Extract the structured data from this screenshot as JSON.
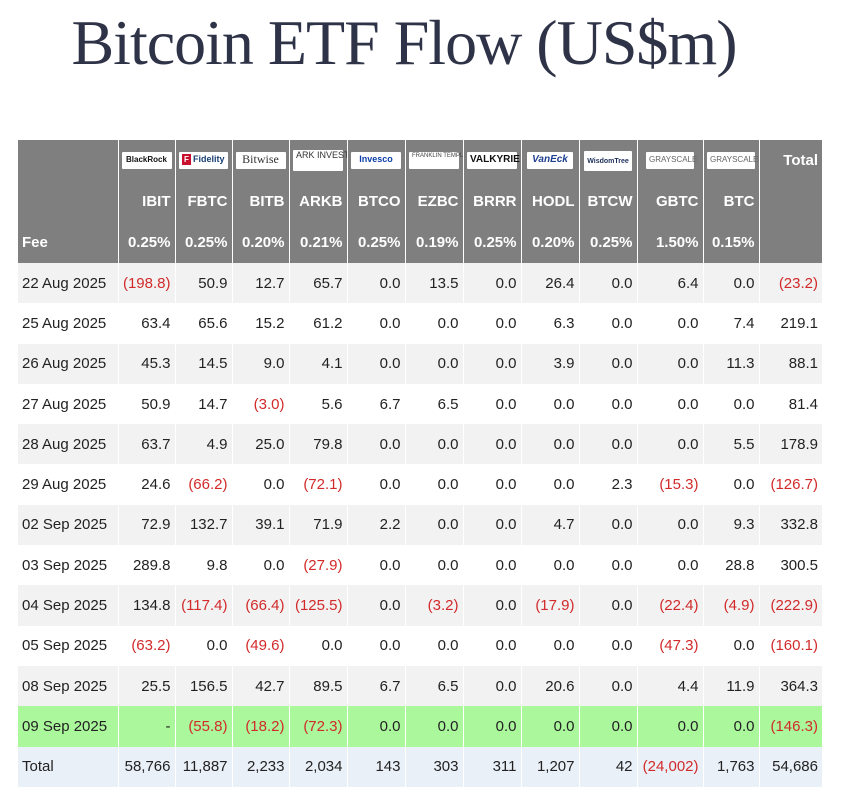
{
  "title": "Bitcoin ETF Flow (US$m)",
  "header": {
    "logos": [
      {
        "name": "blackrock-logo",
        "text": "BlackRock"
      },
      {
        "name": "fidelity-logo",
        "text": "Fidelity"
      },
      {
        "name": "bitwise-logo",
        "text": "Bitwise"
      },
      {
        "name": "ark-logo",
        "text": "ARK INVEST"
      },
      {
        "name": "invesco-logo",
        "text": "Invesco"
      },
      {
        "name": "franklin-logo",
        "text": "FRANKLIN TEMPLETON"
      },
      {
        "name": "valkyrie-logo",
        "text": "VALKYRIE"
      },
      {
        "name": "vaneck-logo",
        "text": "VanEck"
      },
      {
        "name": "wisdomtree-logo",
        "text": "WisdomTree"
      },
      {
        "name": "grayscale-logo",
        "text": "GRAYSCALE"
      },
      {
        "name": "grayscale-mini-logo",
        "text": "GRAYSCALE"
      }
    ],
    "total_label": "Total",
    "tickers": [
      "IBIT",
      "FBTC",
      "BITB",
      "ARKB",
      "BTCO",
      "EZBC",
      "BRRR",
      "HODL",
      "BTCW",
      "GBTC",
      "BTC"
    ],
    "fee_label": "Fee",
    "fees": [
      "0.25%",
      "0.25%",
      "0.20%",
      "0.21%",
      "0.25%",
      "0.19%",
      "0.25%",
      "0.20%",
      "0.25%",
      "1.50%",
      "0.15%"
    ]
  },
  "rows": [
    {
      "date": "22 Aug 2025",
      "values": [
        "(198.8)",
        "50.9",
        "12.7",
        "65.7",
        "0.0",
        "13.5",
        "0.0",
        "26.4",
        "0.0",
        "6.4",
        "0.0"
      ],
      "total": "(23.2)"
    },
    {
      "date": "25 Aug 2025",
      "values": [
        "63.4",
        "65.6",
        "15.2",
        "61.2",
        "0.0",
        "0.0",
        "0.0",
        "6.3",
        "0.0",
        "0.0",
        "7.4"
      ],
      "total": "219.1"
    },
    {
      "date": "26 Aug 2025",
      "values": [
        "45.3",
        "14.5",
        "9.0",
        "4.1",
        "0.0",
        "0.0",
        "0.0",
        "3.9",
        "0.0",
        "0.0",
        "11.3"
      ],
      "total": "88.1"
    },
    {
      "date": "27 Aug 2025",
      "values": [
        "50.9",
        "14.7",
        "(3.0)",
        "5.6",
        "6.7",
        "6.5",
        "0.0",
        "0.0",
        "0.0",
        "0.0",
        "0.0"
      ],
      "total": "81.4"
    },
    {
      "date": "28 Aug 2025",
      "values": [
        "63.7",
        "4.9",
        "25.0",
        "79.8",
        "0.0",
        "0.0",
        "0.0",
        "0.0",
        "0.0",
        "0.0",
        "5.5"
      ],
      "total": "178.9"
    },
    {
      "date": "29 Aug 2025",
      "values": [
        "24.6",
        "(66.2)",
        "0.0",
        "(72.1)",
        "0.0",
        "0.0",
        "0.0",
        "0.0",
        "2.3",
        "(15.3)",
        "0.0"
      ],
      "total": "(126.7)"
    },
    {
      "date": "02 Sep 2025",
      "values": [
        "72.9",
        "132.7",
        "39.1",
        "71.9",
        "2.2",
        "0.0",
        "0.0",
        "4.7",
        "0.0",
        "0.0",
        "9.3"
      ],
      "total": "332.8"
    },
    {
      "date": "03 Sep 2025",
      "values": [
        "289.8",
        "9.8",
        "0.0",
        "(27.9)",
        "0.0",
        "0.0",
        "0.0",
        "0.0",
        "0.0",
        "0.0",
        "28.8"
      ],
      "total": "300.5"
    },
    {
      "date": "04 Sep 2025",
      "values": [
        "134.8",
        "(117.4)",
        "(66.4)",
        "(125.5)",
        "0.0",
        "(3.2)",
        "0.0",
        "(17.9)",
        "0.0",
        "(22.4)",
        "(4.9)"
      ],
      "total": "(222.9)"
    },
    {
      "date": "05 Sep 2025",
      "values": [
        "(63.2)",
        "0.0",
        "(49.6)",
        "0.0",
        "0.0",
        "0.0",
        "0.0",
        "0.0",
        "0.0",
        "(47.3)",
        "0.0"
      ],
      "total": "(160.1)"
    },
    {
      "date": "08 Sep 2025",
      "values": [
        "25.5",
        "156.5",
        "42.7",
        "89.5",
        "6.7",
        "6.5",
        "0.0",
        "20.6",
        "0.0",
        "4.4",
        "11.9"
      ],
      "total": "364.3"
    },
    {
      "date": "09 Sep 2025",
      "values": [
        "-",
        "(55.8)",
        "(18.2)",
        "(72.3)",
        "0.0",
        "0.0",
        "0.0",
        "0.0",
        "0.0",
        "0.0",
        "0.0"
      ],
      "total": "(146.3)",
      "highlight": true
    }
  ],
  "totals": {
    "label": "Total",
    "values": [
      "58,766",
      "11,887",
      "2,233",
      "2,034",
      "143",
      "303",
      "311",
      "1,207",
      "42",
      "(24,002)",
      "1,763"
    ],
    "total": "54,686"
  },
  "colors": {
    "header_bg": "#7f7f7f",
    "negative": "#d22a2a",
    "highlight_row": "#aaf79c",
    "total_row": "#eaf0f8",
    "title": "#2f3347"
  }
}
